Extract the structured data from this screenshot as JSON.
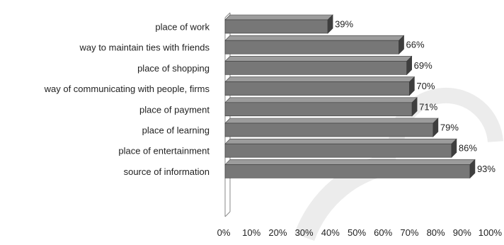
{
  "chart_data": {
    "type": "bar",
    "orientation": "horizontal",
    "style": "3d",
    "categories": [
      "place of work",
      "way to maintain ties with friends",
      "place of shopping",
      "way of communicating with people, firms",
      "place of payment",
      "place of learning",
      "place of entertainment",
      "source of information"
    ],
    "values": [
      39,
      66,
      69,
      70,
      71,
      79,
      86,
      93
    ],
    "value_labels": [
      "39%",
      "66%",
      "69%",
      "70%",
      "71%",
      "79%",
      "86%",
      "93%"
    ],
    "x_ticks": [
      "0%",
      "10%",
      "20%",
      "30%",
      "40%",
      "50%",
      "60%",
      "70%",
      "80%",
      "90%",
      "100%"
    ],
    "xlim": [
      0,
      100
    ],
    "unit": "%",
    "title": "",
    "xlabel": "",
    "ylabel": "",
    "grid": false,
    "legend": "none",
    "colors": {
      "bar_front": "#777777",
      "bar_top": "#9c9c9c",
      "bar_side": "#3e3e3e",
      "bar_edge": "#3a3a3a",
      "axis_wall": "#888888",
      "watermark": "#ececec"
    }
  }
}
